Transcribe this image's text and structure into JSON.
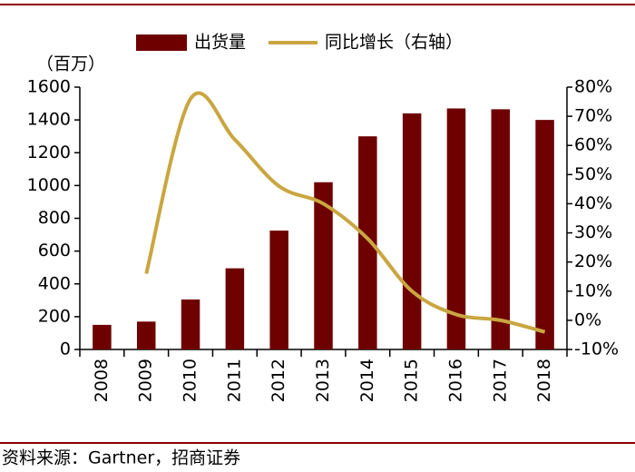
{
  "chart_data": {
    "type": "bar_line",
    "y_unit": "（百万）",
    "source": "资料来源：Gartner，招商证券",
    "categories": [
      "2008",
      "2009",
      "2010",
      "2011",
      "2012",
      "2013",
      "2014",
      "2015",
      "2016",
      "2017",
      "2018"
    ],
    "series": [
      {
        "name": "出货量",
        "type": "bar",
        "color": "#6e0000",
        "values": [
          150,
          170,
          305,
          495,
          725,
          1020,
          1300,
          1440,
          1470,
          1465,
          1400
        ]
      },
      {
        "name": "同比增长（右轴）",
        "type": "line",
        "axis": "y2",
        "color": "#c9a640",
        "values": [
          null,
          16,
          76,
          62,
          46,
          40,
          28,
          10,
          2,
          0,
          -4
        ]
      }
    ],
    "ylim": [
      0,
      1600
    ],
    "yticks": [
      0,
      200,
      400,
      600,
      800,
      1000,
      1200,
      1400,
      1600
    ],
    "y2lim": [
      -10,
      80
    ],
    "y2ticks": [
      {
        "value": -10,
        "label": "-10%"
      },
      {
        "value": 0,
        "label": "0%"
      },
      {
        "value": 10,
        "label": "10%"
      },
      {
        "value": 20,
        "label": "20%"
      },
      {
        "value": 30,
        "label": "30%"
      },
      {
        "value": 40,
        "label": "40%"
      },
      {
        "value": 50,
        "label": "50%"
      },
      {
        "value": 60,
        "label": "60%"
      },
      {
        "value": 70,
        "label": "70%"
      },
      {
        "value": 80,
        "label": "80%"
      }
    ]
  }
}
